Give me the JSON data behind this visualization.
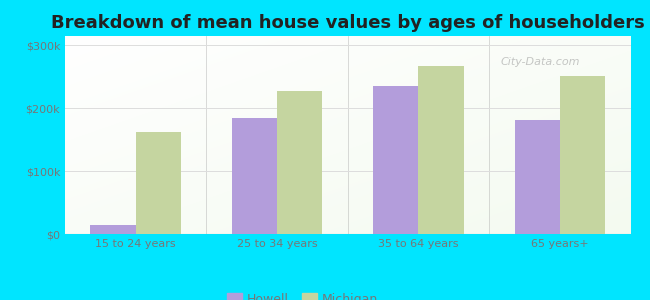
{
  "title": "Breakdown of mean house values by ages of householders",
  "categories": [
    "15 to 24 years",
    "25 to 34 years",
    "35 to 64 years",
    "65 years+"
  ],
  "howell_values": [
    15000,
    185000,
    235000,
    182000
  ],
  "michigan_values": [
    163000,
    228000,
    268000,
    252000
  ],
  "howell_color": "#b39ddb",
  "michigan_color": "#c5d5a0",
  "background_color": "#00e5ff",
  "yticks": [
    0,
    100000,
    200000,
    300000
  ],
  "ytick_labels": [
    "$0",
    "$100k",
    "$200k",
    "$300k"
  ],
  "ylim": [
    0,
    315000
  ],
  "bar_width": 0.32,
  "title_fontsize": 13,
  "legend_labels": [
    "Howell",
    "Michigan"
  ],
  "watermark": "City-Data.com",
  "separator_color": "#aaaaaa",
  "grid_color": "#dddddd",
  "tick_label_color": "#777777"
}
